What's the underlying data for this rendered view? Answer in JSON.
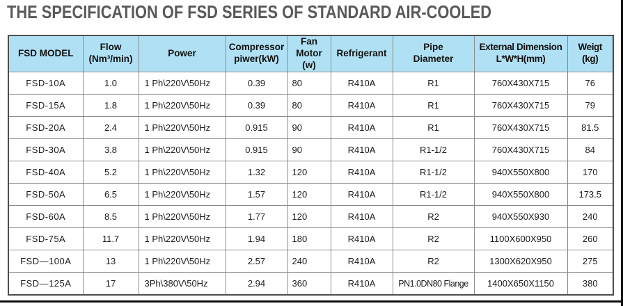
{
  "page": {
    "title": "THE SPECIFICATION OF FSD SERIES OF STANDARD AIR-COOLED"
  },
  "colors": {
    "header_background": "#afe0f3",
    "title_text": "#58595b",
    "table_border": "#4d4d4d",
    "cell_border": "#8c8c8c",
    "frame_line": "#0c0c0c"
  },
  "table": {
    "columns": [
      "FSD MODEL",
      "Flow\n(Nm³/min)",
      "Power",
      "Compressor\npiwer(kW)",
      "Fan Motor\n(w)",
      "Refrigerant",
      "Pipe\nDiameter",
      "External Dimension\nL*W*H(mm)",
      "Weigt\n(kg)"
    ],
    "rows": [
      [
        "FSD-10A",
        "1.0",
        "1 Ph\\220V\\50Hz",
        "0.39",
        "80",
        "R410A",
        "R1",
        "760X430X715",
        "76"
      ],
      [
        "FSD-15A",
        "1.8",
        "1 Ph\\220V\\50Hz",
        "0.39",
        "80",
        "R410A",
        "R1",
        "760X430X715",
        "79"
      ],
      [
        "FSD-20A",
        "2.4",
        "1 Ph\\220V\\50Hz",
        "0.915",
        "90",
        "R410A",
        "R1",
        "760X430X715",
        "81.5"
      ],
      [
        "FSD-30A",
        "3.8",
        "1 Ph\\220V\\50Hz",
        "0.915",
        "90",
        "R410A",
        "R1-1/2",
        "760X430X715",
        "84"
      ],
      [
        "FSD-40A",
        "5.2",
        "1 Ph\\220V\\50Hz",
        "1.32",
        "120",
        "R410A",
        "R1-1/2",
        "940X550X800",
        "170"
      ],
      [
        "FSD-50A",
        "6.5",
        "1 Ph\\220V\\50Hz",
        "1.57",
        "120",
        "R410A",
        "R1-1/2",
        "940X550X800",
        "173.5"
      ],
      [
        "FSD-60A",
        "8.5",
        "1 Ph\\220V\\50Hz",
        "1.77",
        "120",
        "R410A",
        "R2",
        "940X550X930",
        "240"
      ],
      [
        "FSD-75A",
        "11.7",
        "1 Ph\\220V\\50Hz",
        "1.94",
        "180",
        "R410A",
        "R2",
        "1100X600X950",
        "260"
      ],
      [
        "FSD—100A",
        "13",
        "1 Ph\\220V\\50Hz",
        "2.57",
        "240",
        "R410A",
        "R2",
        "1300X620X950",
        "275"
      ],
      [
        "FSD—125A",
        "17",
        "3Ph\\380V\\50Hz",
        "2.94",
        "360",
        "R410A",
        "PN1.0DN80 Flange",
        "1400X650X1150",
        "380"
      ]
    ]
  }
}
